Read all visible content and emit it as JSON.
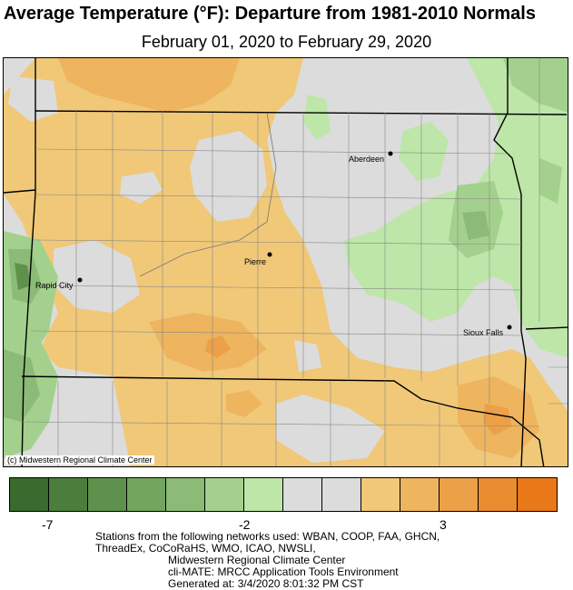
{
  "header": {
    "title": "Average Temperature (°F): Departure from 1981-2010 Normals",
    "subtitle": "February 01, 2020 to February 29, 2020"
  },
  "map": {
    "credit": "(c) Midwestern Regional Climate Center",
    "cities": [
      {
        "name": "Aberdeen"
      },
      {
        "name": "Pierre"
      },
      {
        "name": "Rapid City"
      },
      {
        "name": "Sioux Falls"
      }
    ]
  },
  "legend": {
    "colors": [
      "#3a6a2e",
      "#4b7e3c",
      "#5e914c",
      "#72a55e",
      "#8bbb76",
      "#a3d18d",
      "#bde6a8",
      "#dcdcdc",
      "#dcdcdc",
      "#f0c878",
      "#eeb45e",
      "#eca048",
      "#ea8c30",
      "#e87818"
    ],
    "tick_labels": [
      "-7",
      "-2",
      "3"
    ]
  },
  "footer": {
    "line1": "Stations from the following networks used: WBAN, COOP, FAA, GHCN,",
    "line2": "ThreadEx, CoCoRaHS, WMO, ICAO, NWSLI,",
    "line3": "Midwestern Regional Climate Center",
    "line4": "cli-MATE: MRCC Application Tools Environment",
    "line5": "Generated at: 3/4/2020 8:01:32 PM CST"
  }
}
